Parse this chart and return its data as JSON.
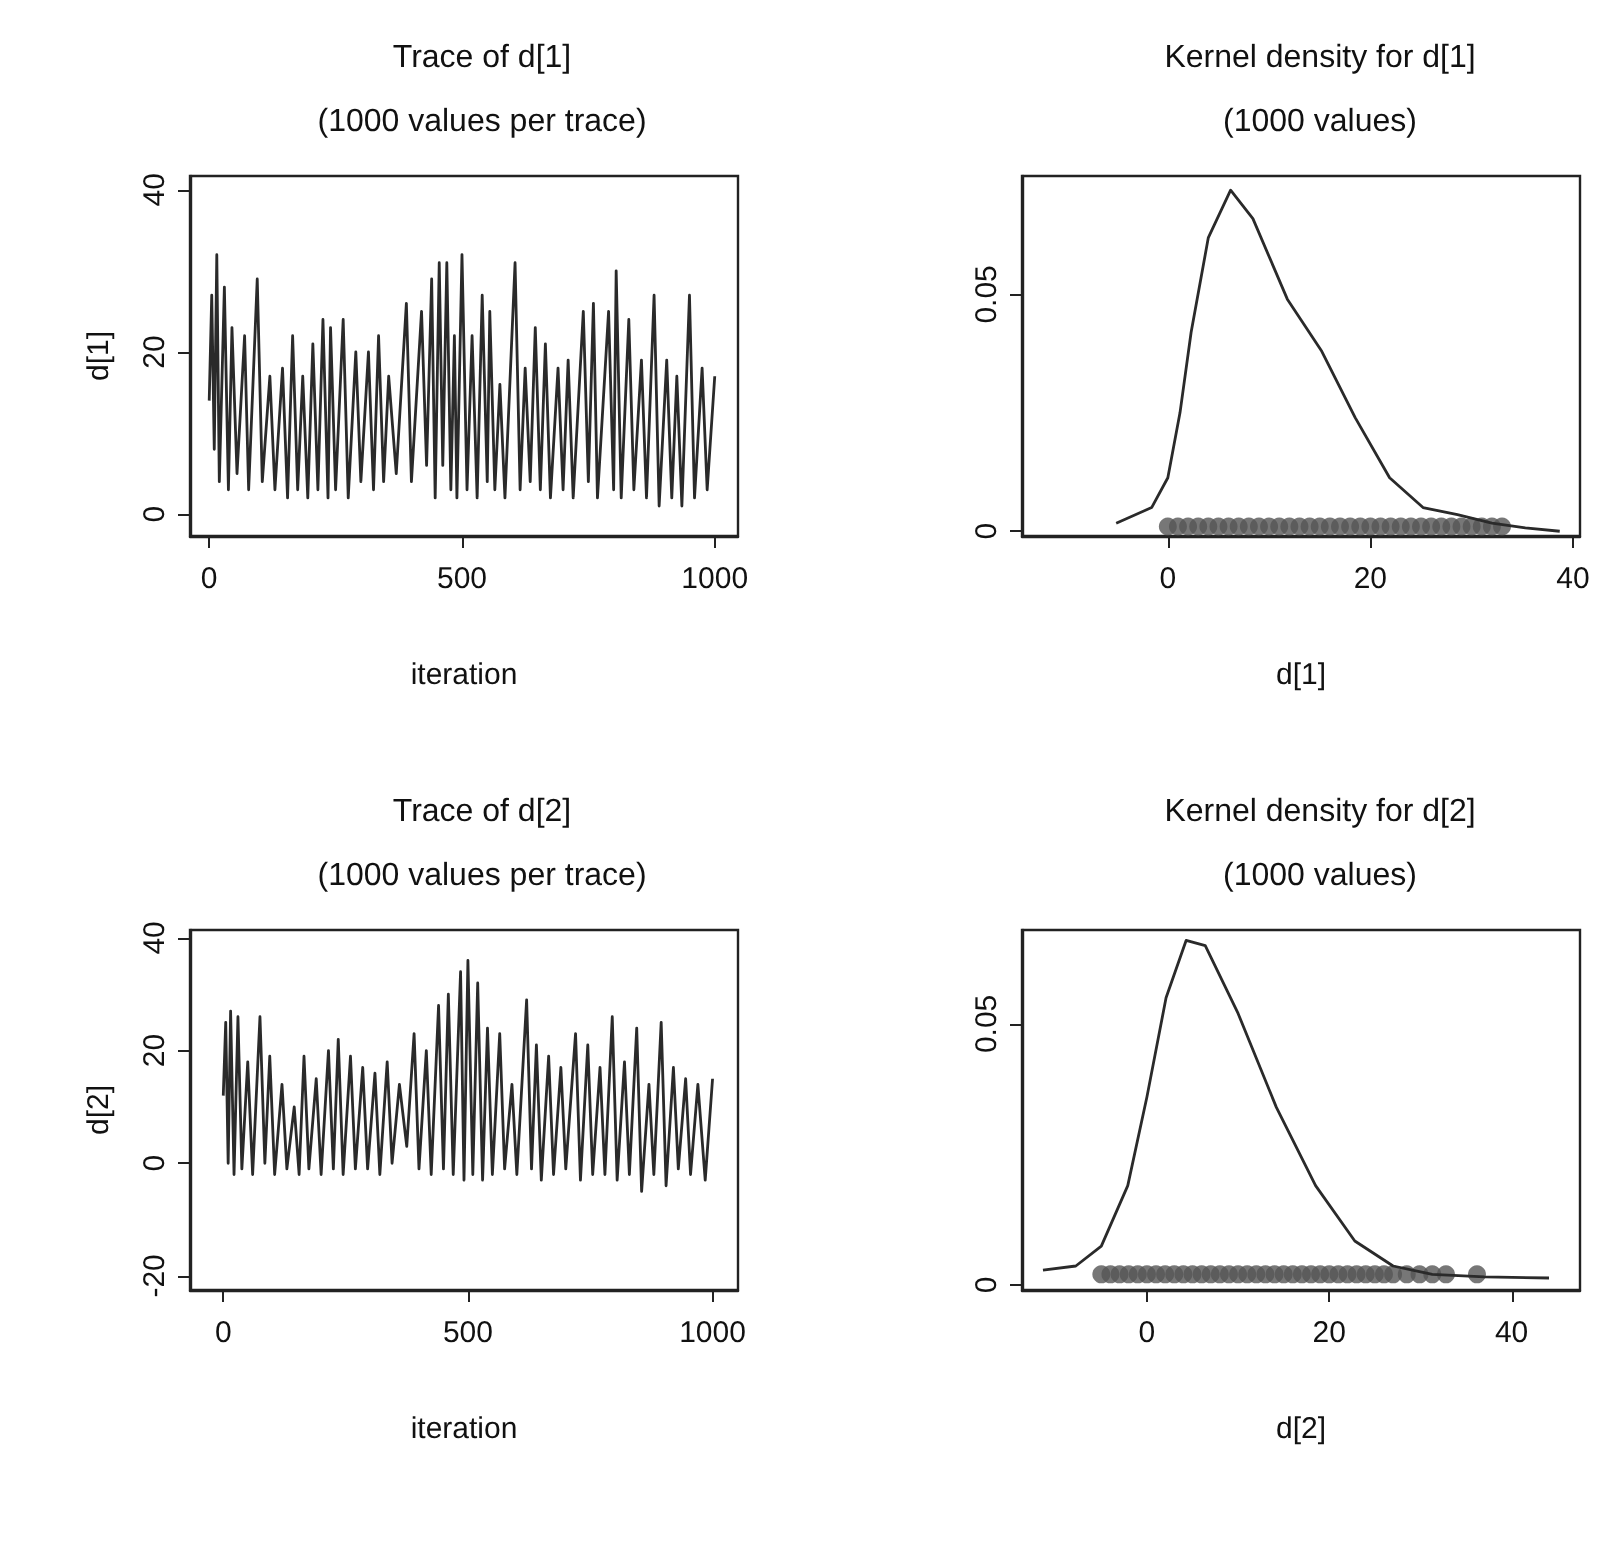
{
  "chart_data": [
    {
      "type": "line",
      "title": "Trace of d[1]",
      "subtitle": "(1000 values per trace)",
      "xlabel": "iteration",
      "ylabel": "d[1]",
      "xlim": [
        -38,
        1046
      ],
      "ylim": [
        -2.7,
        41.7
      ],
      "xticks": [
        0,
        500,
        1000
      ],
      "yticks": [
        0,
        20,
        40
      ],
      "series": [
        {
          "type": "line",
          "color": "#2a2a2a",
          "x": [
            0,
            5,
            10,
            15,
            20,
            30,
            38,
            45,
            55,
            70,
            78,
            95,
            105,
            120,
            130,
            145,
            155,
            165,
            175,
            185,
            195,
            205,
            215,
            225,
            235,
            240,
            250,
            265,
            275,
            290,
            300,
            315,
            325,
            335,
            345,
            355,
            370,
            390,
            400,
            420,
            430,
            440,
            447,
            455,
            462,
            470,
            478,
            485,
            490,
            500,
            510,
            520,
            530,
            540,
            550,
            555,
            565,
            575,
            585,
            605,
            615,
            625,
            635,
            645,
            655,
            665,
            675,
            690,
            700,
            710,
            720,
            740,
            750,
            760,
            768,
            790,
            800,
            805,
            815,
            830,
            840,
            855,
            865,
            880,
            890,
            905,
            915,
            925,
            935,
            950,
            960,
            975,
            985,
            1000
          ],
          "values": [
            14,
            27,
            8,
            32,
            4,
            28,
            3,
            23,
            5,
            22,
            3,
            29,
            4,
            17,
            3,
            18,
            2,
            22,
            3,
            17,
            2,
            21,
            3,
            24,
            2,
            23,
            3,
            24,
            2,
            20,
            4,
            20,
            3,
            22,
            4,
            17,
            5,
            26,
            4,
            25,
            6,
            29,
            2,
            31,
            6,
            31,
            3,
            22,
            2,
            32,
            3,
            22,
            2,
            27,
            4,
            25,
            3,
            16,
            2,
            31,
            3,
            18,
            4,
            23,
            3,
            21,
            2,
            18,
            3,
            19,
            2,
            25,
            4,
            26,
            2,
            25,
            3,
            30,
            2,
            24,
            3,
            19,
            2,
            27,
            1,
            19,
            2,
            17,
            1,
            27,
            2,
            18,
            3,
            17
          ]
        }
      ]
    },
    {
      "type": "line",
      "title": "Kernel density for d[1]",
      "subtitle": "(1000 values)",
      "xlabel": "d[1]",
      "xlim": [
        -14.4,
        40.7
      ],
      "ylim": [
        -0.001,
        0.075
      ],
      "xticks": [
        0,
        20,
        40
      ],
      "yticks": [
        0,
        0.05
      ],
      "series": [
        {
          "type": "line",
          "color": "#2a2a2a",
          "x": [
            -5.1,
            -1.6,
            0,
            1.2,
            2.3,
            4.0,
            6.2,
            8.4,
            11.8,
            15.2,
            18.5,
            21.9,
            25.2,
            28.6,
            32,
            35.3,
            38.7
          ],
          "values": [
            0.0017,
            0.005,
            0.0113,
            0.025,
            0.042,
            0.062,
            0.072,
            0.066,
            0.049,
            0.038,
            0.024,
            0.0113,
            0.005,
            0.0035,
            0.0017,
            0.0007,
            0
          ]
        },
        {
          "type": "scatter",
          "marker": "circle",
          "color": "#555555",
          "x": [
            0,
            1,
            2,
            3,
            4,
            5,
            6,
            7,
            8,
            9,
            10,
            11,
            12,
            13,
            14,
            15,
            16,
            17,
            18,
            19,
            20,
            21,
            22,
            23,
            24,
            25,
            26,
            27,
            28,
            29,
            30,
            31,
            32,
            33
          ],
          "values": [
            0.001,
            0.001,
            0.001,
            0.001,
            0.001,
            0.001,
            0.001,
            0.001,
            0.001,
            0.001,
            0.001,
            0.001,
            0.001,
            0.001,
            0.001,
            0.001,
            0.001,
            0.001,
            0.001,
            0.001,
            0.001,
            0.001,
            0.001,
            0.001,
            0.001,
            0.001,
            0.001,
            0.001,
            0.001,
            0.001,
            0.001,
            0.001,
            0.001,
            0.001
          ]
        }
      ]
    },
    {
      "type": "line",
      "title": "Trace of d[2]",
      "subtitle": "(1000 values per trace)",
      "xlabel": "iteration",
      "ylabel": "d[2]",
      "xlim": [
        -68,
        1052
      ],
      "ylim": [
        -22.5,
        41.4
      ],
      "xticks": [
        0,
        500,
        1000
      ],
      "yticks": [
        -20,
        0,
        20,
        40
      ],
      "series": [
        {
          "type": "line",
          "color": "#2a2a2a",
          "x": [
            0,
            5,
            10,
            15,
            22,
            30,
            38,
            50,
            60,
            75,
            85,
            95,
            105,
            120,
            130,
            145,
            155,
            165,
            175,
            190,
            200,
            215,
            225,
            235,
            245,
            260,
            270,
            285,
            295,
            310,
            320,
            335,
            345,
            360,
            375,
            390,
            400,
            415,
            425,
            440,
            450,
            460,
            470,
            485,
            492,
            500,
            510,
            520,
            530,
            540,
            550,
            565,
            575,
            590,
            600,
            620,
            630,
            640,
            650,
            665,
            675,
            690,
            700,
            720,
            730,
            745,
            755,
            770,
            780,
            795,
            805,
            820,
            830,
            845,
            855,
            870,
            880,
            895,
            905,
            920,
            930,
            945,
            955,
            970,
            985,
            1000
          ],
          "values": [
            12,
            25,
            0,
            27,
            -2,
            26,
            -1,
            18,
            -2,
            26,
            0,
            19,
            -2,
            14,
            -1,
            10,
            -2,
            19,
            -1,
            15,
            -2,
            20,
            -1,
            22,
            -2,
            19,
            -1,
            17,
            -1,
            16,
            -2,
            18,
            0,
            14,
            3,
            23,
            -1,
            20,
            -2,
            28,
            -1,
            30,
            -2,
            34,
            -3,
            36,
            -2,
            32,
            -3,
            24,
            -2,
            23,
            -1,
            14,
            -2,
            29,
            -1,
            21,
            -3,
            19,
            -2,
            17,
            -1,
            23,
            -3,
            21,
            -2,
            17,
            -2,
            26,
            -3,
            18,
            -2,
            24,
            -5,
            14,
            -2,
            25,
            -4,
            17,
            -1,
            15,
            -2,
            14,
            -3,
            15
          ]
        }
      ]
    },
    {
      "type": "line",
      "title": "Kernel density for d[2]",
      "subtitle": "(1000 values)",
      "xlabel": "d[2]",
      "xlim": [
        -13.7,
        47.5
      ],
      "ylim": [
        -0.001,
        0.068
      ],
      "xticks": [
        0,
        20,
        40
      ],
      "yticks": [
        0,
        0.05
      ],
      "series": [
        {
          "type": "line",
          "color": "#2a2a2a",
          "x": [
            -11.4,
            -7.8,
            -5.0,
            -2.1,
            0,
            2.1,
            4.3,
            6.4,
            10.0,
            14.2,
            18.5,
            22.8,
            27.0,
            31.3,
            37.0,
            44.1
          ],
          "values": [
            0.0028,
            0.0036,
            0.0074,
            0.019,
            0.036,
            0.055,
            0.066,
            0.065,
            0.052,
            0.034,
            0.019,
            0.0084,
            0.0036,
            0.002,
            0.0015,
            0.0013
          ]
        },
        {
          "type": "scatter",
          "marker": "circle",
          "color": "#555555",
          "x": [
            -5,
            -4,
            -3,
            -2,
            -1,
            0,
            1,
            2,
            3,
            4,
            5,
            6,
            7,
            8,
            9,
            10,
            11,
            12,
            13,
            14,
            15,
            16,
            17,
            18,
            19,
            20,
            21,
            22,
            23,
            24,
            25,
            26,
            27,
            28.5,
            29.9,
            31.3,
            32.8,
            36.2
          ],
          "values": [
            0.002,
            0.002,
            0.002,
            0.002,
            0.002,
            0.002,
            0.002,
            0.002,
            0.002,
            0.002,
            0.002,
            0.002,
            0.002,
            0.002,
            0.002,
            0.002,
            0.002,
            0.002,
            0.002,
            0.002,
            0.002,
            0.002,
            0.002,
            0.002,
            0.002,
            0.002,
            0.002,
            0.002,
            0.002,
            0.002,
            0.002,
            0.002,
            0.002,
            0.002,
            0.002,
            0.002,
            0.002,
            0.002
          ]
        }
      ]
    }
  ]
}
